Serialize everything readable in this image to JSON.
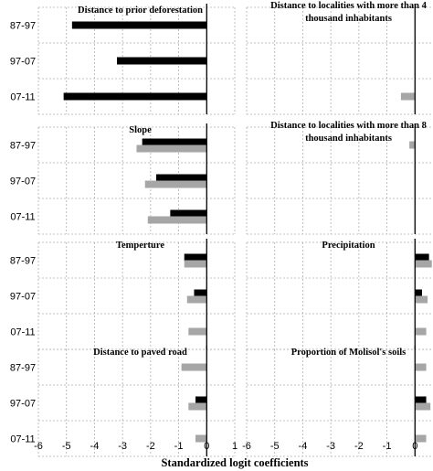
{
  "chart_data": {
    "type": "bar",
    "orientation": "horizontal",
    "xlabel": "Standardized logit coefficients",
    "xlim": [
      -6,
      1
    ],
    "xticks": [
      "-6",
      "-5",
      "-4",
      "-3",
      "-2",
      "-1",
      "0",
      "1"
    ],
    "row_labels": [
      "1987-97",
      "1997-07",
      "2007-11"
    ],
    "row_labels_visible": [
      "87-97",
      "97-07",
      "07-11"
    ],
    "series_colors": {
      "dark": "#000000",
      "light": "#a6a6a6"
    },
    "grid": true,
    "panels": [
      {
        "title_lines": [
          "Distance to prior  deforestation"
        ],
        "bars": [
          [
            {
              "series": "dark",
              "value": -4.8
            }
          ],
          [
            {
              "series": "dark",
              "value": -3.2
            }
          ],
          [
            {
              "series": "dark",
              "value": -5.1
            }
          ]
        ]
      },
      {
        "title_lines": [
          "Distance to localities with more than 4",
          "thousand inhabitants"
        ],
        "bars": [
          [],
          [],
          [
            {
              "series": "light",
              "value": -0.5
            }
          ]
        ]
      },
      {
        "title_lines": [
          "Slope"
        ],
        "bars": [
          [
            {
              "series": "dark",
              "value": -2.3
            },
            {
              "series": "light",
              "value": -2.5
            }
          ],
          [
            {
              "series": "dark",
              "value": -1.8
            },
            {
              "series": "light",
              "value": -2.2
            }
          ],
          [
            {
              "series": "dark",
              "value": -1.3
            },
            {
              "series": "light",
              "value": -2.1
            }
          ]
        ]
      },
      {
        "title_lines": [
          "Distance to localities with more than 8",
          "thousand inhabitants"
        ],
        "bars": [
          [
            {
              "series": "light",
              "value": -0.2
            }
          ],
          [],
          []
        ]
      },
      {
        "title_lines": [
          "Temperture"
        ],
        "bars": [
          [
            {
              "series": "dark",
              "value": -0.8
            },
            {
              "series": "light",
              "value": -0.8
            }
          ],
          [
            {
              "series": "dark",
              "value": -0.45
            },
            {
              "series": "light",
              "value": -0.7
            }
          ],
          [
            {
              "series": "light",
              "value": -0.65
            }
          ]
        ]
      },
      {
        "title_lines": [
          "Precipitation"
        ],
        "bars": [
          [
            {
              "series": "dark",
              "value": 0.5
            },
            {
              "series": "light",
              "value": 0.6
            }
          ],
          [
            {
              "series": "dark",
              "value": 0.25
            },
            {
              "series": "light",
              "value": 0.45
            }
          ],
          [
            {
              "series": "light",
              "value": 0.4
            }
          ]
        ]
      },
      {
        "title_lines": [
          "Distance to paved road"
        ],
        "bars": [
          [
            {
              "series": "light",
              "value": -0.9
            }
          ],
          [
            {
              "series": "dark",
              "value": -0.4
            },
            {
              "series": "light",
              "value": -0.65
            }
          ],
          [
            {
              "series": "light",
              "value": -0.4
            }
          ]
        ]
      },
      {
        "title_lines": [
          "Proportion  of Molisol's soils"
        ],
        "bars": [
          [
            {
              "series": "light",
              "value": 0.4
            }
          ],
          [
            {
              "series": "dark",
              "value": 0.4
            },
            {
              "series": "light",
              "value": 0.55
            }
          ],
          [
            {
              "series": "light",
              "value": 0.4
            }
          ]
        ]
      }
    ]
  }
}
